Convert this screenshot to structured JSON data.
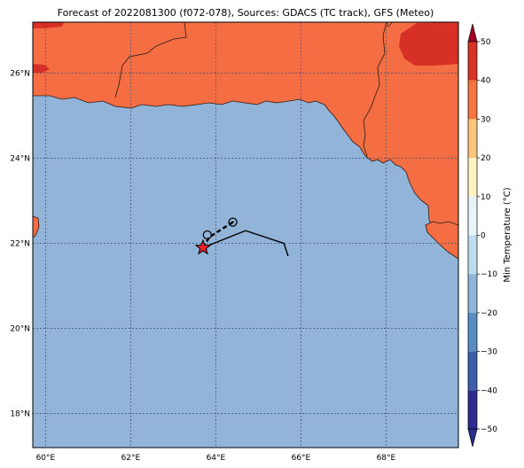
{
  "title": "Forecast of 2022081300 (f072-078), Sources: GDACS (TC track), GFS (Meteo)",
  "colorbar": {
    "label": "Min Temperature (°C)",
    "ticks": [
      "50",
      "40",
      "30",
      "20",
      "10",
      "0",
      "−10",
      "−20",
      "−30",
      "−40",
      "−50"
    ],
    "bands": [
      "#2b2d8f",
      "#3a5ea8",
      "#5a8dc2",
      "#8fb5d9",
      "#bfdcee",
      "#e8f5f8",
      "#fff3c4",
      "#fdc57a",
      "#f6743f",
      "#d73226",
      "#a50026"
    ]
  },
  "map": {
    "x_ticks": [
      "60°E",
      "62°E",
      "64°E",
      "66°E",
      "68°E"
    ],
    "y_ticks": [
      "26°N",
      "24°N",
      "22°N",
      "20°N",
      "18°N"
    ],
    "lon_ticks": [
      60,
      62,
      64,
      66,
      68
    ],
    "lat_ticks": [
      26,
      24,
      22,
      20,
      18
    ],
    "lon_range": [
      59.7,
      69.7
    ],
    "lat_range": [
      17.2,
      27.2
    ],
    "ocean_color": "#92b4d9",
    "land_color": "#f46d43",
    "hot_land_color": "#d73027",
    "track": {
      "past": [
        [
          63.7,
          21.9
        ],
        [
          64.7,
          22.3
        ],
        [
          65.6,
          22.0
        ],
        [
          65.7,
          21.7
        ]
      ],
      "forecast": [
        [
          63.7,
          21.9
        ],
        [
          63.85,
          22.15
        ],
        [
          64.4,
          22.5
        ]
      ],
      "current_position": [
        63.7,
        21.9
      ],
      "forecast_points": [
        [
          63.8,
          22.2
        ],
        [
          64.4,
          22.5
        ]
      ]
    }
  }
}
